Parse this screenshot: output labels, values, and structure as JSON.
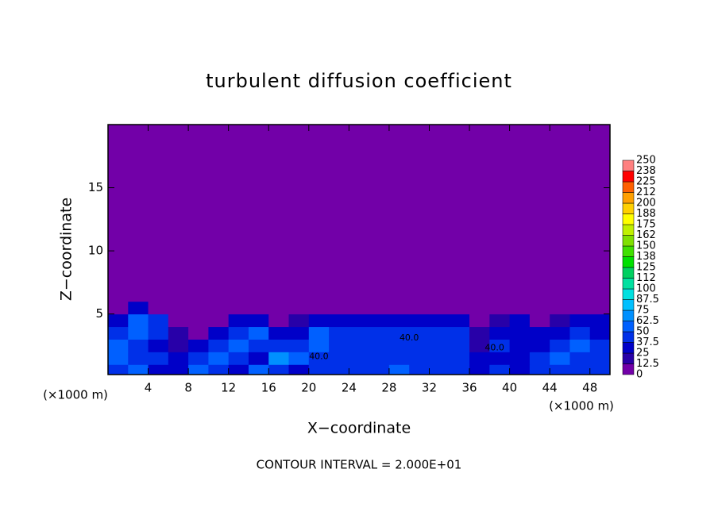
{
  "chart_data": {
    "type": "contour",
    "title": "turbulent diffusion coefficient",
    "xlabel": "X−coordinate",
    "ylabel": "Z−coordinate",
    "x_unit": "(×1000 m)",
    "y_unit": "(×1000 m)",
    "footer": "CONTOUR INTERVAL = 2.000E+01",
    "xlim": [
      0,
      50
    ],
    "ylim": [
      0.2,
      20
    ],
    "xticks": [
      4,
      8,
      12,
      16,
      20,
      24,
      28,
      32,
      36,
      40,
      44,
      48
    ],
    "yticks": [
      5,
      10,
      15
    ],
    "xbins": [
      0,
      2,
      4,
      6,
      8,
      10,
      12,
      14,
      16,
      18,
      20,
      22,
      24,
      26,
      28,
      30,
      32,
      34,
      36,
      38,
      40,
      42,
      44,
      46,
      48,
      50
    ],
    "ybins": [
      0.2,
      1,
      2,
      3,
      4,
      5,
      6,
      20
    ],
    "z": [
      [
        45,
        60,
        35,
        30,
        55,
        40,
        30,
        50,
        40,
        35,
        45,
        40,
        45,
        40,
        50,
        45,
        40,
        45,
        35,
        45,
        35,
        40,
        45,
        40,
        45
      ],
      [
        50,
        45,
        40,
        35,
        45,
        60,
        40,
        30,
        70,
        50,
        40,
        45,
        40,
        45,
        45,
        45,
        40,
        45,
        35,
        30,
        35,
        40,
        50,
        45,
        40
      ],
      [
        55,
        45,
        30,
        20,
        30,
        45,
        50,
        45,
        40,
        40,
        55,
        45,
        40,
        45,
        40,
        45,
        40,
        40,
        20,
        40,
        30,
        35,
        45,
        50,
        45
      ],
      [
        40,
        60,
        45,
        15,
        10,
        30,
        45,
        50,
        35,
        30,
        50,
        40,
        40,
        40,
        45,
        45,
        40,
        45,
        15,
        35,
        30,
        25,
        30,
        40,
        35
      ],
      [
        35,
        50,
        40,
        5,
        5,
        10,
        30,
        25,
        10,
        20,
        30,
        30,
        35,
        35,
        30,
        25,
        30,
        30,
        10,
        20,
        25,
        10,
        20,
        30,
        30
      ],
      [
        10,
        25,
        5,
        0,
        0,
        0,
        0,
        0,
        0,
        0,
        0,
        0,
        0,
        0,
        0,
        0,
        0,
        0,
        0,
        0,
        0,
        0,
        0,
        0,
        0
      ],
      [
        0,
        0,
        0,
        0,
        0,
        0,
        0,
        0,
        0,
        0,
        0,
        0,
        0,
        0,
        0,
        0,
        0,
        0,
        0,
        0,
        0,
        0,
        0,
        0,
        0
      ]
    ],
    "levels": [
      0,
      12.5,
      25,
      37.5,
      50,
      62.5,
      75,
      87.5,
      100,
      {
        "value": 112.5,
        "label": "112"
      },
      125,
      {
        "value": 137.5,
        "label": "138"
      },
      150,
      {
        "value": 162.5,
        "label": "162"
      },
      175,
      {
        "value": 187.5,
        "label": "188"
      },
      200,
      {
        "value": 212.5,
        "label": "212"
      },
      225,
      {
        "value": 237.5,
        "label": "238"
      },
      250
    ],
    "colors": [
      "#7200a8",
      "#2800a8",
      "#0000c8",
      "#0030e8",
      "#0060ff",
      "#0090ff",
      "#00c0ff",
      "#00e0e0",
      "#00e0a0",
      "#00d060",
      "#00e000",
      "#40e000",
      "#80e000",
      "#c0f000",
      "#ffff00",
      "#ffd000",
      "#ffa000",
      "#ff6000",
      "#ff0000",
      "#ff8080"
    ],
    "annotations": [
      {
        "text": "40.0",
        "x": 21,
        "y": 1.6
      },
      {
        "text": "40.0",
        "x": 38.5,
        "y": 2.3
      },
      {
        "text": "40.0",
        "x": 30,
        "y": 3.1
      }
    ]
  }
}
